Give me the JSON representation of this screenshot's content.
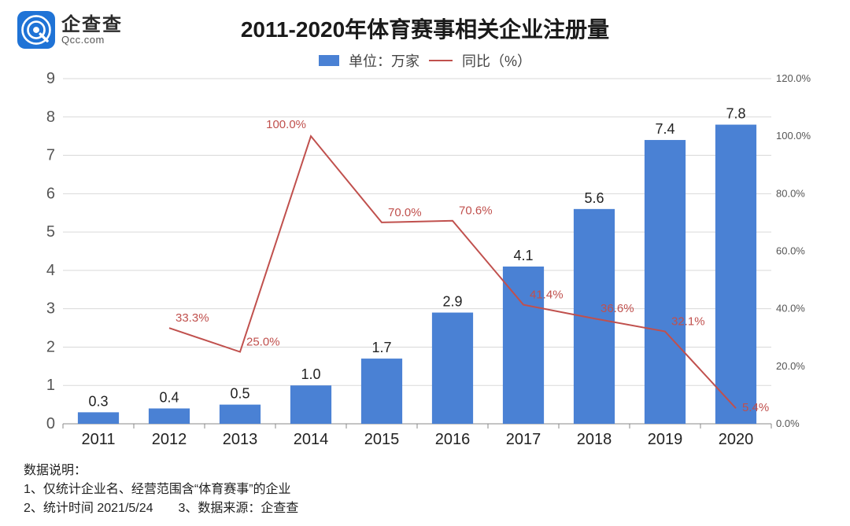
{
  "logo": {
    "cn": "企查查",
    "en": "Qcc.com",
    "bg_color": "#1f73d6",
    "at_color": "#ffffff"
  },
  "title": {
    "text": "2011-2020年体育赛事相关企业注册量",
    "fontsize": 28,
    "color": "#1a1a1a",
    "weight": "700"
  },
  "legend": {
    "bar_label": "单位：万家",
    "line_label": "同比（%）",
    "text_color": "#444444"
  },
  "chart": {
    "type": "bar+line",
    "categories": [
      "2011",
      "2012",
      "2013",
      "2014",
      "2015",
      "2016",
      "2017",
      "2018",
      "2019",
      "2020"
    ],
    "bar_values": [
      0.3,
      0.4,
      0.5,
      1.0,
      1.7,
      2.9,
      4.1,
      5.6,
      7.4,
      7.8
    ],
    "bar_value_labels": [
      "0.3",
      "0.4",
      "0.5",
      "1.0",
      "1.7",
      "2.9",
      "4.1",
      "5.6",
      "7.4",
      "7.8"
    ],
    "line_values": [
      null,
      33.3,
      25.0,
      100.0,
      70.0,
      70.6,
      41.4,
      36.6,
      32.1,
      5.4
    ],
    "line_value_labels": [
      null,
      "33.3%",
      "25.0%",
      "100.0%",
      "70.0%",
      "70.6%",
      "41.4%",
      "36.6%",
      "32.1%",
      "5.4%"
    ],
    "bar_color": "#4a81d4",
    "line_color": "#c0504d",
    "y_left": {
      "min": 0,
      "max": 9,
      "step": 1
    },
    "y_right": {
      "min": 0,
      "max": 120,
      "step": 20,
      "suffix": "%"
    },
    "grid_color": "#d9d9d9",
    "axis_color": "#888888",
    "tick_font_size": 20,
    "value_label_font_size": 18,
    "line_label_font_size": 15,
    "right_tick_font_size": 13,
    "bar_width_ratio": 0.58,
    "background_color": "#ffffff"
  },
  "footnotes": {
    "heading": "数据说明：",
    "line1": "1、仅统计企业名、经营范围含“体育赛事”的企业",
    "line2": "2、统计时间 2021/5/24　　3、数据来源：企查查"
  }
}
